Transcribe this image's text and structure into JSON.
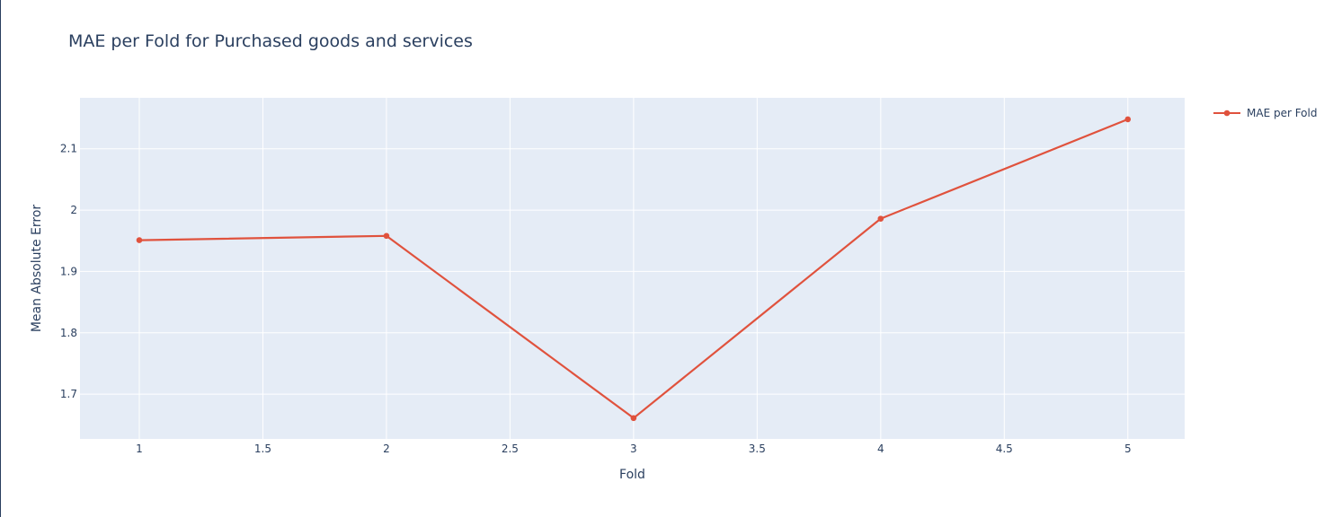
{
  "chart_data": {
    "type": "line",
    "title": "MAE per Fold for Purchased goods and services",
    "xlabel": "Fold",
    "ylabel": "Mean Absolute Error",
    "xlim": [
      0.76,
      5.23
    ],
    "ylim": [
      1.627,
      2.183
    ],
    "x_ticks": [
      1,
      1.5,
      2,
      2.5,
      3,
      3.5,
      4,
      4.5,
      5
    ],
    "x_tick_labels": [
      "1",
      "1.5",
      "2",
      "2.5",
      "3",
      "3.5",
      "4",
      "4.5",
      "5"
    ],
    "y_ticks": [
      1.7,
      1.8,
      1.9,
      2.0,
      2.1
    ],
    "y_tick_labels": [
      "1.7",
      "1.8",
      "1.9",
      "2",
      "2.1"
    ],
    "grid": true,
    "legend_position": "top-right",
    "colors": {
      "plot_background": "#e5ecf6",
      "grid": "#ffffff",
      "series": "#e0523d",
      "text": "#2a3f5f"
    },
    "series": [
      {
        "name": "MAE per Fold",
        "mode": "lines+markers",
        "x": [
          1,
          2,
          3,
          4,
          5
        ],
        "y": [
          1.951,
          1.958,
          1.661,
          1.986,
          2.148
        ]
      }
    ]
  }
}
